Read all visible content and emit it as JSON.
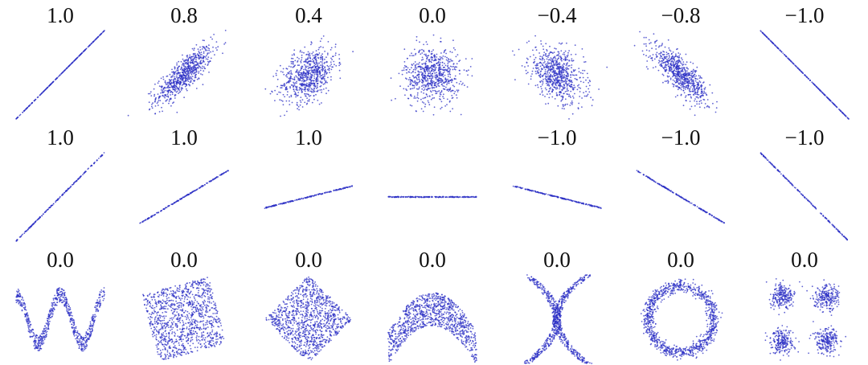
{
  "chart_data": {
    "type": "scatter",
    "colors": {
      "points": "#2b2fc4",
      "text": "#111111"
    },
    "rows": [
      [
        {
          "label": "1.0",
          "kind": "gauss",
          "r": 1.0
        },
        {
          "label": "0.8",
          "kind": "gauss",
          "r": 0.8
        },
        {
          "label": "0.4",
          "kind": "gauss",
          "r": 0.4
        },
        {
          "label": "0.0",
          "kind": "gauss",
          "r": 0.0
        },
        {
          "label": "−0.4",
          "kind": "gauss",
          "r": -0.4
        },
        {
          "label": "−0.8",
          "kind": "gauss",
          "r": -0.8
        },
        {
          "label": "−1.0",
          "kind": "gauss",
          "r": -1.0
        }
      ],
      [
        {
          "label": "1.0",
          "kind": "line",
          "slope": 1.0
        },
        {
          "label": "1.0",
          "kind": "line",
          "slope": 0.6
        },
        {
          "label": "1.0",
          "kind": "line",
          "slope": 0.25
        },
        {
          "label": "",
          "kind": "line",
          "slope": 0.0
        },
        {
          "label": "−1.0",
          "kind": "line",
          "slope": -0.25
        },
        {
          "label": "−1.0",
          "kind": "line",
          "slope": -0.6
        },
        {
          "label": "−1.0",
          "kind": "line",
          "slope": -1.0
        }
      ],
      [
        {
          "label": "0.0",
          "kind": "wave"
        },
        {
          "label": "0.0",
          "kind": "rotsquare",
          "angle": 15
        },
        {
          "label": "0.0",
          "kind": "rotsquare",
          "angle": 45
        },
        {
          "label": "0.0",
          "kind": "parabola"
        },
        {
          "label": "0.0",
          "kind": "cross"
        },
        {
          "label": "0.0",
          "kind": "ring"
        },
        {
          "label": "0.0",
          "kind": "clusters"
        }
      ]
    ]
  }
}
